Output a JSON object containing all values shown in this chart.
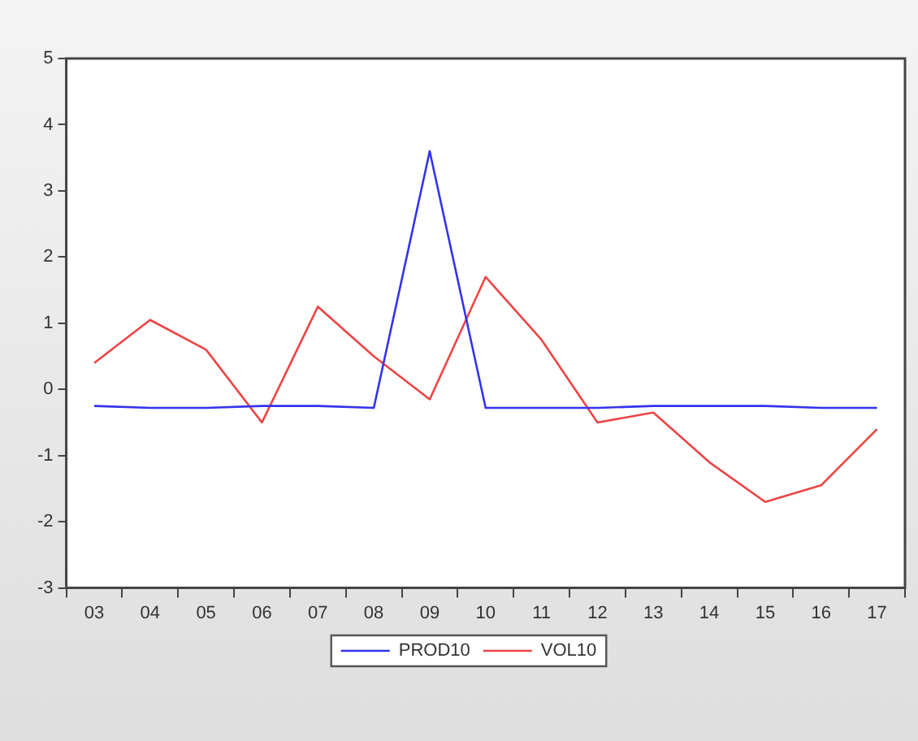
{
  "chart_data": {
    "type": "line",
    "categories": [
      "03",
      "04",
      "05",
      "06",
      "07",
      "08",
      "09",
      "10",
      "11",
      "12",
      "13",
      "14",
      "15",
      "16",
      "17"
    ],
    "ylim": [
      -3,
      5
    ],
    "yticks": [
      -3,
      -2,
      -1,
      0,
      1,
      2,
      3,
      4,
      5
    ],
    "grid": false,
    "legend": "bottom",
    "marker": "none",
    "line_style": "solid",
    "series": [
      {
        "name": "PROD10",
        "color": "#3333ee",
        "values": [
          -0.25,
          -0.28,
          -0.28,
          -0.25,
          -0.25,
          -0.28,
          3.6,
          -0.28,
          -0.28,
          -0.28,
          -0.25,
          -0.25,
          -0.25,
          -0.28,
          -0.28
        ]
      },
      {
        "name": "VOL10",
        "color": "#ee4444",
        "values": [
          0.4,
          1.05,
          0.6,
          -0.5,
          1.25,
          0.5,
          -0.15,
          1.7,
          0.75,
          -0.5,
          -0.35,
          -1.1,
          -1.7,
          -1.45,
          -0.6
        ]
      }
    ]
  }
}
